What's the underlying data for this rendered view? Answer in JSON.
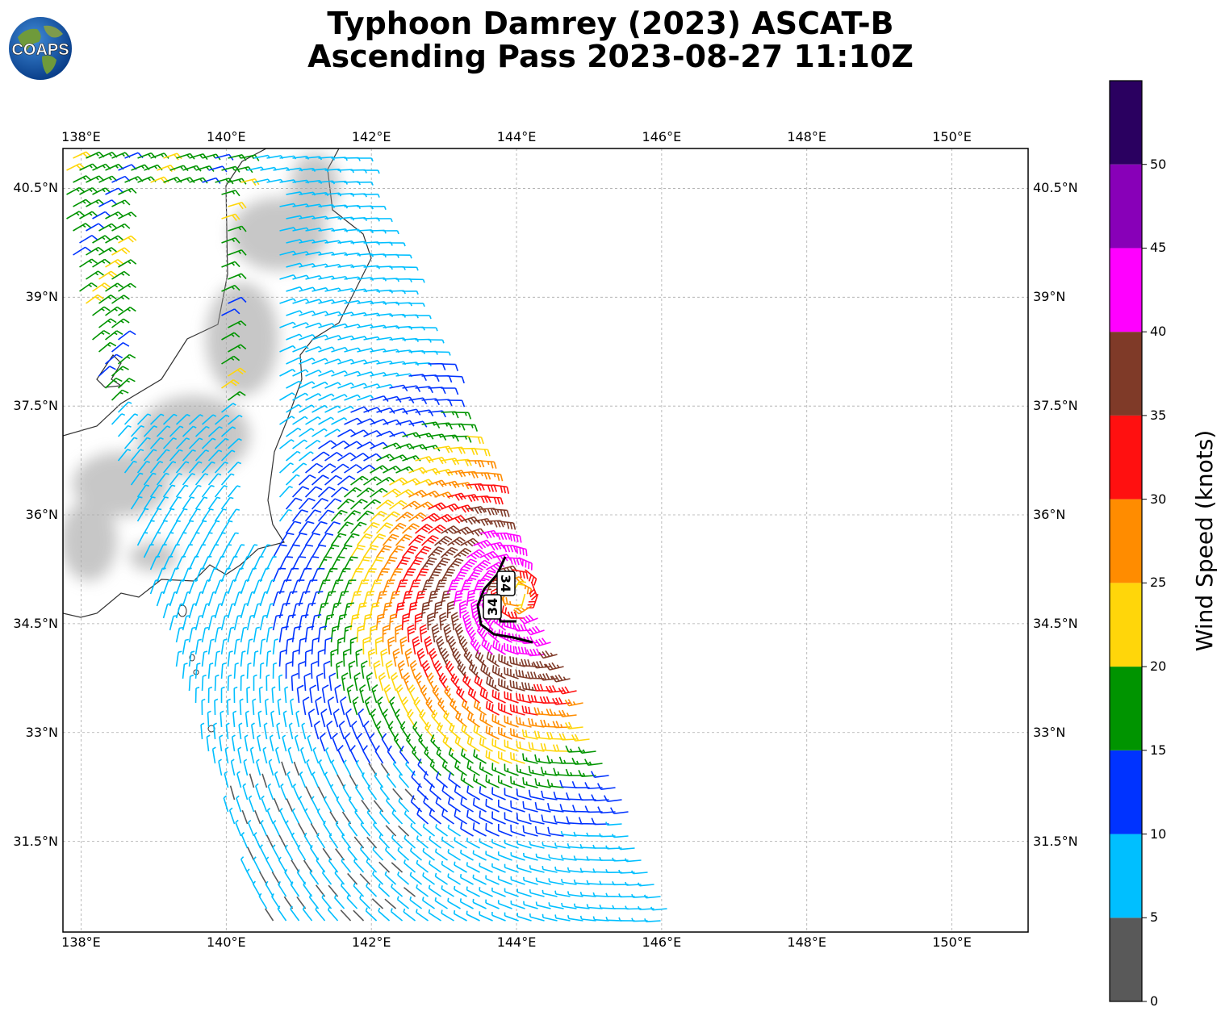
{
  "title_line1": "Typhoon Damrey (2023) ASCAT-B",
  "title_line2": "Ascending Pass 2023-08-27 11:10Z",
  "logo": {
    "text": "COAPS",
    "icon": "globe-icon"
  },
  "map": {
    "projection": "lat-lon",
    "lon_range": [
      137.75,
      151.05
    ],
    "lat_range": [
      30.25,
      41.05
    ],
    "lon_ticks": [
      "138°E",
      "140°E",
      "142°E",
      "144°E",
      "146°E",
      "148°E",
      "150°E"
    ],
    "lat_ticks": [
      "40.5°N",
      "39°N",
      "37.5°N",
      "36°N",
      "34.5°N",
      "33°N",
      "31.5°N"
    ],
    "gridlines": true,
    "wind_radii_label": "34",
    "storm_center_approx": {
      "lon": 144.0,
      "lat": 34.9
    },
    "terrain_shading": "grayscale"
  },
  "colorbar": {
    "label": "Wind Speed (knots)",
    "ticks": [
      "0",
      "5",
      "10",
      "15",
      "20",
      "25",
      "30",
      "35",
      "40",
      "45",
      "50"
    ],
    "bins": [
      {
        "from": 0,
        "to": 5,
        "color": "#595959"
      },
      {
        "from": 5,
        "to": 10,
        "color": "#00bfff"
      },
      {
        "from": 10,
        "to": 15,
        "color": "#0033ff"
      },
      {
        "from": 15,
        "to": 20,
        "color": "#009400"
      },
      {
        "from": 20,
        "to": 25,
        "color": "#ffd60a"
      },
      {
        "from": 25,
        "to": 30,
        "color": "#ff8c00"
      },
      {
        "from": 30,
        "to": 35,
        "color": "#ff1010"
      },
      {
        "from": 35,
        "to": 40,
        "color": "#7f3a28"
      },
      {
        "from": 40,
        "to": 45,
        "color": "#ff00ff"
      },
      {
        "from": 45,
        "to": 50,
        "color": "#8800b8"
      },
      {
        "from": 50,
        "to": 55,
        "color": "#2a0060"
      }
    ]
  }
}
